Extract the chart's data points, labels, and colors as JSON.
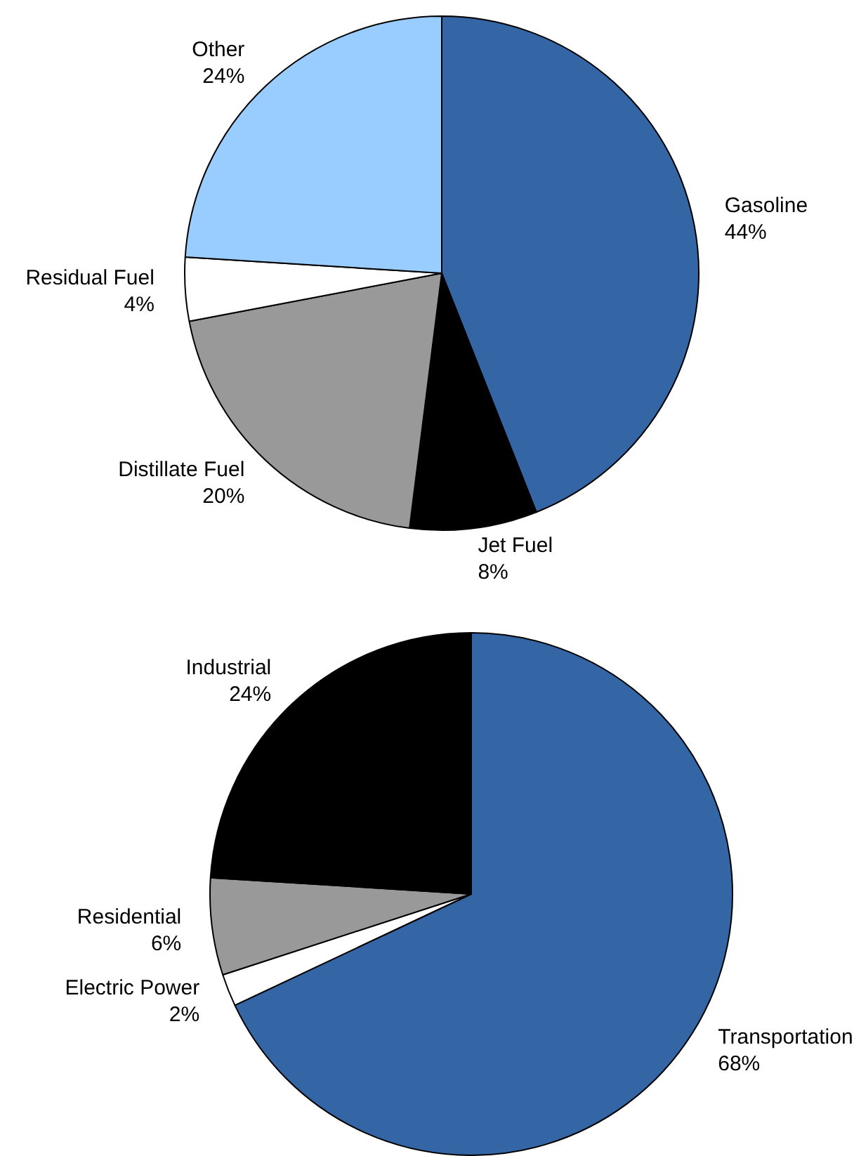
{
  "chart_data": [
    {
      "type": "pie",
      "categories": [
        "Gasoline",
        "Jet Fuel",
        "Distillate Fuel",
        "Residual Fuel",
        "Other"
      ],
      "values": [
        44,
        8,
        20,
        4,
        24
      ],
      "value_labels": [
        "44%",
        "8%",
        "20%",
        "4%",
        "24%"
      ],
      "colors": [
        "#3465a4",
        "#000000",
        "#999999",
        "#ffffff",
        "#99ccff"
      ]
    },
    {
      "type": "pie",
      "categories": [
        "Transportation",
        "Electric Power",
        "Residential",
        "Industrial"
      ],
      "values": [
        68,
        2,
        6,
        24
      ],
      "value_labels": [
        "68%",
        "2%",
        "6%",
        "24%"
      ],
      "colors": [
        "#3465a4",
        "#ffffff",
        "#999999",
        "#000000"
      ]
    }
  ]
}
